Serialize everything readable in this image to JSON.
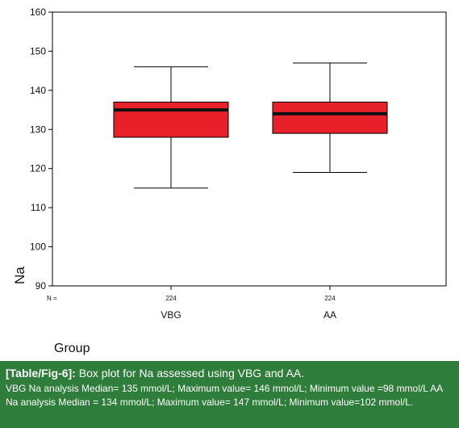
{
  "chart_data": {
    "type": "boxplot",
    "xlabel": "Group",
    "ylabel": "Na",
    "ylim": [
      90,
      160
    ],
    "y_ticks": [
      90,
      100,
      110,
      120,
      130,
      140,
      150,
      160
    ],
    "n_label": "N =",
    "grid": false,
    "groups": [
      {
        "category": "VBG",
        "n": "224",
        "whisker_low": 115,
        "q1": 128,
        "median": 135,
        "q3": 137,
        "whisker_high": 146
      },
      {
        "category": "AA",
        "n": "224",
        "whisker_low": 119,
        "q1": 129,
        "median": 134,
        "q3": 137,
        "whisker_high": 147
      }
    ],
    "box_color": "#e8202a",
    "median_color": "#111111"
  },
  "caption": {
    "tag": "[Table/Fig-6]:",
    "title": "Box plot for Na assessed using VBG and AA.",
    "body": "VBG Na analysis Median= 135 mmol/L; Maximum value= 146 mmol/L; Minimum value =98 mmol/L AA Na analysis Median = 134 mmol/L; Maximum value= 147 mmol/L; Minimum value=102 mmol/L.",
    "background": "#2e7d3a"
  }
}
